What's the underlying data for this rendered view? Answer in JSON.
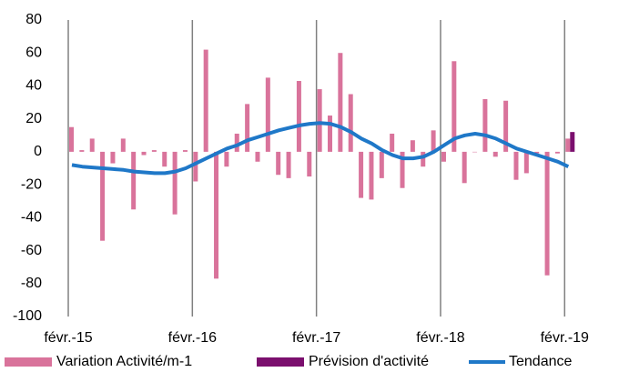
{
  "chart_data": {
    "type": "bar",
    "categories": [
      "févr.-15",
      null,
      null,
      null,
      null,
      null,
      null,
      null,
      null,
      null,
      null,
      null,
      "févr.-16",
      null,
      null,
      null,
      null,
      null,
      null,
      null,
      null,
      null,
      null,
      null,
      "févr.-17",
      null,
      null,
      null,
      null,
      null,
      null,
      null,
      null,
      null,
      null,
      null,
      "févr.-18",
      null,
      null,
      null,
      null,
      null,
      null,
      null,
      null,
      null,
      null,
      null,
      "févr.-19"
    ],
    "series": [
      {
        "name": "Variation Activité/m-1",
        "color": "#d9739b",
        "kind": "bar",
        "values": [
          15,
          1,
          8,
          -54,
          -7,
          8,
          -35,
          -2,
          1,
          -9,
          -38,
          1,
          -18,
          62,
          -77,
          -9,
          11,
          29,
          -6,
          45,
          -14,
          -16,
          43,
          -15,
          38,
          22,
          60,
          35,
          -28,
          -29,
          -16,
          11,
          -22,
          7,
          -9,
          13,
          -6,
          55,
          -19,
          0,
          32,
          -3,
          31,
          -17,
          -13,
          -1,
          -75,
          -1,
          8
        ]
      },
      {
        "name": "Prévision d'activité",
        "color": "#7b0f6e",
        "kind": "bar",
        "values": [
          null,
          null,
          null,
          null,
          null,
          null,
          null,
          null,
          null,
          null,
          null,
          null,
          null,
          null,
          null,
          null,
          null,
          null,
          null,
          null,
          null,
          null,
          null,
          null,
          null,
          null,
          null,
          null,
          null,
          null,
          null,
          null,
          null,
          null,
          null,
          null,
          null,
          null,
          null,
          null,
          null,
          null,
          null,
          null,
          null,
          null,
          null,
          null,
          12
        ]
      },
      {
        "name": "Tendance",
        "color": "#1f78c8",
        "kind": "line",
        "values": [
          -8,
          -9,
          -9.5,
          -10,
          -10.5,
          -11,
          -12,
          -12.5,
          -13,
          -13,
          -12,
          -10,
          -7,
          -4,
          -1,
          2,
          4,
          7,
          9,
          11,
          13,
          14.5,
          16,
          17,
          17.5,
          17,
          15,
          12,
          8,
          5,
          1,
          -2,
          -4,
          -4,
          -3,
          0,
          4,
          8,
          10,
          11,
          10,
          8,
          5,
          2,
          0,
          -2,
          -4,
          -6,
          -9
        ]
      }
    ],
    "ylim": [
      -100,
      80
    ],
    "yticks": [
      -100,
      -80,
      -60,
      -40,
      -20,
      0,
      20,
      40,
      60,
      80
    ],
    "grid": "x",
    "legend": "bottom"
  }
}
